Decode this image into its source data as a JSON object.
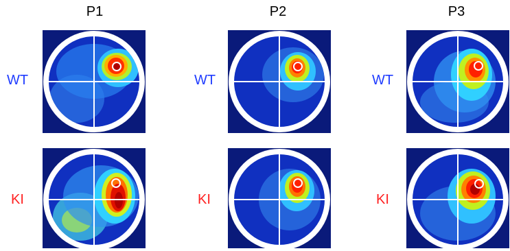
{
  "columns": [
    {
      "id": "p1",
      "label": "P1"
    },
    {
      "id": "p2",
      "label": "P2"
    },
    {
      "id": "p3",
      "label": "P3"
    }
  ],
  "rows": [
    {
      "id": "wt",
      "label": "WT",
      "color": "#1f3cff"
    },
    {
      "id": "ki",
      "label": "KI",
      "color": "#ff2020"
    }
  ],
  "colors": {
    "background_corner": "#0a1a7a",
    "ring": "#ffffff",
    "heat_low": "#1030c0",
    "heat_mid": "#30b0ff",
    "heat_warm": "#f0f020",
    "heat_hot": "#ff3000",
    "heat_peak": "#b00000"
  }
}
